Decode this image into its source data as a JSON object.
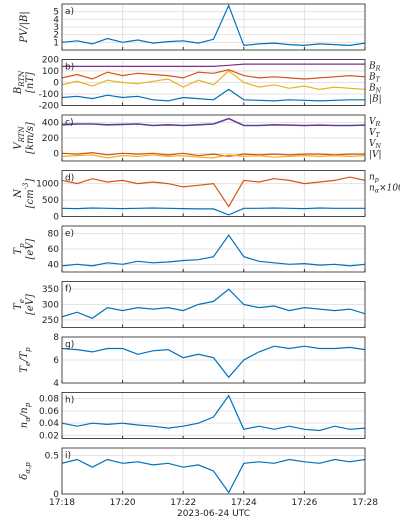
{
  "chart_data": [
    {
      "type": "line",
      "label": "a)",
      "ylabel": [
        "PV/|B|"
      ],
      "x": [
        "17:18:00",
        "17:18:30",
        "17:19:00",
        "17:19:30",
        "17:20:00",
        "17:20:30",
        "17:21:00",
        "17:21:30",
        "17:22:00",
        "17:22:30",
        "17:23:00",
        "17:23:30",
        "17:24:00",
        "17:24:30",
        "17:25:00",
        "17:25:30",
        "17:26:00",
        "17:26:30",
        "17:27:00",
        "17:27:30",
        "17:28:00"
      ],
      "xlim": [
        "17:18:00",
        "17:28:00"
      ],
      "xticks": [
        "17:18",
        "17:20",
        "17:22",
        "17:24",
        "17:26",
        "17:28"
      ],
      "ylim": [
        0,
        6
      ],
      "yticks": [
        1,
        2,
        3,
        4,
        5
      ],
      "grid": true,
      "series": [
        {
          "name": "PV/|B|",
          "color": "#0072bd",
          "values": [
            1,
            1.2,
            0.8,
            1.5,
            1,
            1.3,
            0.9,
            1.1,
            1.2,
            0.9,
            1.4,
            5.8,
            0.6,
            0.8,
            0.9,
            0.7,
            0.6,
            0.8,
            0.7,
            0.6,
            0.9
          ]
        }
      ]
    },
    {
      "type": "line",
      "label": "b)",
      "ylabel": [
        "B_RTN",
        "[nT]"
      ],
      "x": [
        "17:18:00",
        "17:18:30",
        "17:19:00",
        "17:19:30",
        "17:20:00",
        "17:20:30",
        "17:21:00",
        "17:21:30",
        "17:22:00",
        "17:22:30",
        "17:23:00",
        "17:23:30",
        "17:24:00",
        "17:24:30",
        "17:25:00",
        "17:25:30",
        "17:26:00",
        "17:26:30",
        "17:27:00",
        "17:27:30",
        "17:28:00"
      ],
      "xlim": [
        "17:18:00",
        "17:28:00"
      ],
      "xticks": [
        "17:18",
        "17:20",
        "17:22",
        "17:24",
        "17:26",
        "17:28"
      ],
      "ylim": [
        -200,
        200
      ],
      "yticks": [
        -200,
        -100,
        0,
        100,
        200
      ],
      "grid": true,
      "legend": "outside-right",
      "series": [
        {
          "name": "B_R",
          "color": "#0072bd",
          "values": [
            -130,
            -120,
            -140,
            -110,
            -130,
            -120,
            -150,
            -160,
            -130,
            -140,
            -150,
            -60,
            -150,
            -155,
            -160,
            -150,
            -155,
            -160,
            -155,
            -150,
            -150
          ]
        },
        {
          "name": "B_T",
          "color": "#d95319",
          "values": [
            40,
            70,
            30,
            90,
            60,
            80,
            70,
            60,
            40,
            90,
            80,
            110,
            60,
            40,
            50,
            40,
            30,
            40,
            50,
            60,
            50
          ]
        },
        {
          "name": "B_N",
          "color": "#edb120",
          "values": [
            -20,
            10,
            -30,
            20,
            0,
            -10,
            10,
            30,
            -40,
            20,
            -20,
            100,
            0,
            -40,
            -20,
            -50,
            -30,
            -60,
            -40,
            -50,
            -60
          ]
        },
        {
          "name": "|B|",
          "color": "#7e2f8e",
          "values": [
            140,
            140,
            140,
            140,
            140,
            140,
            140,
            140,
            140,
            140,
            140,
            150,
            160,
            160,
            160,
            160,
            160,
            160,
            160,
            160,
            160
          ]
        }
      ]
    },
    {
      "type": "line",
      "label": "c)",
      "ylabel": [
        "V_RTN",
        "[km/s]"
      ],
      "x": [
        "17:18:00",
        "17:18:30",
        "17:19:00",
        "17:19:30",
        "17:20:00",
        "17:20:30",
        "17:21:00",
        "17:21:30",
        "17:22:00",
        "17:22:30",
        "17:23:00",
        "17:23:30",
        "17:24:00",
        "17:24:30",
        "17:25:00",
        "17:25:30",
        "17:26:00",
        "17:26:30",
        "17:27:00",
        "17:27:30",
        "17:28:00"
      ],
      "xlim": [
        "17:18:00",
        "17:28:00"
      ],
      "xticks": [
        "17:18",
        "17:20",
        "17:22",
        "17:24",
        "17:26",
        "17:28"
      ],
      "ylim": [
        -100,
        500
      ],
      "yticks": [
        0,
        200,
        400
      ],
      "grid": true,
      "legend": "outside-right",
      "series": [
        {
          "name": "V_R",
          "color": "#0072bd",
          "values": [
            370,
            380,
            380,
            370,
            375,
            380,
            360,
            370,
            360,
            370,
            380,
            450,
            360,
            360,
            370,
            365,
            360,
            365,
            360,
            360,
            365
          ]
        },
        {
          "name": "V_T",
          "color": "#d95319",
          "values": [
            0,
            -10,
            10,
            -20,
            0,
            -10,
            0,
            -20,
            0,
            -30,
            -10,
            -40,
            -10,
            -20,
            -10,
            -20,
            -10,
            -10,
            -20,
            -10,
            -10
          ]
        },
        {
          "name": "V_N",
          "color": "#edb120",
          "values": [
            -40,
            -30,
            -20,
            -60,
            -30,
            -40,
            -20,
            -40,
            -30,
            -50,
            -60,
            -20,
            -40,
            -30,
            -50,
            -40,
            -30,
            -40,
            -30,
            -40,
            -30
          ]
        },
        {
          "name": "|V|",
          "color": "#7e2f8e",
          "values": [
            380,
            385,
            385,
            375,
            380,
            385,
            365,
            375,
            365,
            375,
            385,
            455,
            365,
            365,
            375,
            370,
            365,
            370,
            365,
            365,
            370
          ]
        }
      ]
    },
    {
      "type": "line",
      "label": "d)",
      "ylabel": [
        "N",
        "[cm^-3]"
      ],
      "x": [
        "17:18:00",
        "17:18:30",
        "17:19:00",
        "17:19:30",
        "17:20:00",
        "17:20:30",
        "17:21:00",
        "17:21:30",
        "17:22:00",
        "17:22:30",
        "17:23:00",
        "17:23:30",
        "17:24:00",
        "17:24:30",
        "17:25:00",
        "17:25:30",
        "17:26:00",
        "17:26:30",
        "17:27:00",
        "17:27:30",
        "17:28:00"
      ],
      "xlim": [
        "17:18:00",
        "17:28:00"
      ],
      "xticks": [
        "17:18",
        "17:20",
        "17:22",
        "17:24",
        "17:26",
        "17:28"
      ],
      "ylim": [
        0,
        1400
      ],
      "yticks": [
        0,
        500,
        1000
      ],
      "grid": true,
      "legend": "outside-right",
      "series": [
        {
          "name": "n_p",
          "color": "#0072bd",
          "values": [
            250,
            240,
            260,
            250,
            240,
            250,
            260,
            250,
            240,
            230,
            230,
            50,
            250,
            250,
            260,
            250,
            240,
            260,
            250,
            250,
            250
          ]
        },
        {
          "name": "n_α×100",
          "color": "#d95319",
          "values": [
            1100,
            1000,
            1150,
            1050,
            1100,
            1000,
            1050,
            1000,
            900,
            950,
            1000,
            300,
            1100,
            1050,
            1150,
            1100,
            1000,
            1050,
            1100,
            1200,
            1100
          ]
        }
      ]
    },
    {
      "type": "line",
      "label": "e)",
      "ylabel": [
        "T_p",
        "[eV]"
      ],
      "x": [
        "17:18:00",
        "17:18:30",
        "17:19:00",
        "17:19:30",
        "17:20:00",
        "17:20:30",
        "17:21:00",
        "17:21:30",
        "17:22:00",
        "17:22:30",
        "17:23:00",
        "17:23:30",
        "17:24:00",
        "17:24:30",
        "17:25:00",
        "17:25:30",
        "17:26:00",
        "17:26:30",
        "17:27:00",
        "17:27:30",
        "17:28:00"
      ],
      "xlim": [
        "17:18:00",
        "17:28:00"
      ],
      "xticks": [
        "17:18",
        "17:20",
        "17:22",
        "17:24",
        "17:26",
        "17:28"
      ],
      "ylim": [
        30,
        90
      ],
      "yticks": [
        40,
        60,
        80
      ],
      "grid": true,
      "series": [
        {
          "name": "T_p",
          "color": "#0072bd",
          "values": [
            38,
            40,
            38,
            42,
            40,
            44,
            42,
            43,
            45,
            46,
            50,
            78,
            50,
            44,
            42,
            40,
            41,
            39,
            40,
            38,
            40
          ]
        }
      ]
    },
    {
      "type": "line",
      "label": "f)",
      "ylabel": [
        "T_e",
        "[eV]"
      ],
      "x": [
        "17:18:00",
        "17:18:30",
        "17:19:00",
        "17:19:30",
        "17:20:00",
        "17:20:30",
        "17:21:00",
        "17:21:30",
        "17:22:00",
        "17:22:30",
        "17:23:00",
        "17:23:30",
        "17:24:00",
        "17:24:30",
        "17:25:00",
        "17:25:30",
        "17:26:00",
        "17:26:30",
        "17:27:00",
        "17:27:30",
        "17:28:00"
      ],
      "xlim": [
        "17:18:00",
        "17:28:00"
      ],
      "xticks": [
        "17:18",
        "17:20",
        "17:22",
        "17:24",
        "17:26",
        "17:28"
      ],
      "ylim": [
        225,
        375
      ],
      "yticks": [
        250,
        300,
        350
      ],
      "grid": true,
      "series": [
        {
          "name": "T_e",
          "color": "#0072bd",
          "values": [
            260,
            275,
            255,
            290,
            280,
            290,
            285,
            290,
            280,
            300,
            310,
            350,
            300,
            290,
            295,
            280,
            290,
            285,
            280,
            285,
            270
          ]
        }
      ]
    },
    {
      "type": "line",
      "label": "g)",
      "ylabel": [
        "T_e/T_p"
      ],
      "x": [
        "17:18:00",
        "17:18:30",
        "17:19:00",
        "17:19:30",
        "17:20:00",
        "17:20:30",
        "17:21:00",
        "17:21:30",
        "17:22:00",
        "17:22:30",
        "17:23:00",
        "17:23:30",
        "17:24:00",
        "17:24:30",
        "17:25:00",
        "17:25:30",
        "17:26:00",
        "17:26:30",
        "17:27:00",
        "17:27:30",
        "17:28:00"
      ],
      "xlim": [
        "17:18:00",
        "17:28:00"
      ],
      "xticks": [
        "17:18",
        "17:20",
        "17:22",
        "17:24",
        "17:26",
        "17:28"
      ],
      "ylim": [
        4,
        8
      ],
      "yticks": [
        4,
        6,
        8
      ],
      "grid": true,
      "series": [
        {
          "name": "T_e/T_p",
          "color": "#0072bd",
          "values": [
            7,
            6.9,
            6.7,
            7,
            7,
            6.5,
            6.8,
            6.9,
            6.2,
            6.5,
            6.2,
            4.5,
            6,
            6.7,
            7.2,
            7,
            7.2,
            7,
            7,
            7.1,
            6.9
          ]
        }
      ]
    },
    {
      "type": "line",
      "label": "h)",
      "ylabel": [
        "n_α/n_p"
      ],
      "x": [
        "17:18:00",
        "17:18:30",
        "17:19:00",
        "17:19:30",
        "17:20:00",
        "17:20:30",
        "17:21:00",
        "17:21:30",
        "17:22:00",
        "17:22:30",
        "17:23:00",
        "17:23:30",
        "17:24:00",
        "17:24:30",
        "17:25:00",
        "17:25:30",
        "17:26:00",
        "17:26:30",
        "17:27:00",
        "17:27:30",
        "17:28:00"
      ],
      "xlim": [
        "17:18:00",
        "17:28:00"
      ],
      "xticks": [
        "17:18",
        "17:20",
        "17:22",
        "17:24",
        "17:26",
        "17:28"
      ],
      "ylim": [
        0.015,
        0.09
      ],
      "yticks": [
        0.02,
        0.04,
        0.06,
        0.08
      ],
      "grid": true,
      "series": [
        {
          "name": "n_α/n_p",
          "color": "#0072bd",
          "values": [
            0.04,
            0.035,
            0.04,
            0.038,
            0.04,
            0.037,
            0.035,
            0.032,
            0.035,
            0.04,
            0.05,
            0.085,
            0.03,
            0.035,
            0.03,
            0.035,
            0.03,
            0.028,
            0.035,
            0.03,
            0.032
          ]
        }
      ]
    },
    {
      "type": "line",
      "label": "i)",
      "ylabel": [
        "δ_α,p"
      ],
      "xlabel": "2023-06-24 UTC",
      "x": [
        "17:18:00",
        "17:18:30",
        "17:19:00",
        "17:19:30",
        "17:20:00",
        "17:20:30",
        "17:21:00",
        "17:21:30",
        "17:22:00",
        "17:22:30",
        "17:23:00",
        "17:23:30",
        "17:24:00",
        "17:24:30",
        "17:25:00",
        "17:25:30",
        "17:26:00",
        "17:26:30",
        "17:27:00",
        "17:27:30",
        "17:28:00"
      ],
      "xlim": [
        "17:18:00",
        "17:28:00"
      ],
      "xticks": [
        "17:18",
        "17:20",
        "17:22",
        "17:24",
        "17:26",
        "17:28"
      ],
      "ylim": [
        0,
        0.6
      ],
      "yticks": [
        0,
        0.5
      ],
      "grid": true,
      "series": [
        {
          "name": "δ_α,p",
          "color": "#0072bd",
          "values": [
            0.4,
            0.45,
            0.35,
            0.45,
            0.4,
            0.42,
            0.38,
            0.4,
            0.35,
            0.38,
            0.3,
            0.02,
            0.4,
            0.42,
            0.4,
            0.45,
            0.42,
            0.4,
            0.45,
            0.42,
            0.45
          ]
        }
      ]
    }
  ]
}
